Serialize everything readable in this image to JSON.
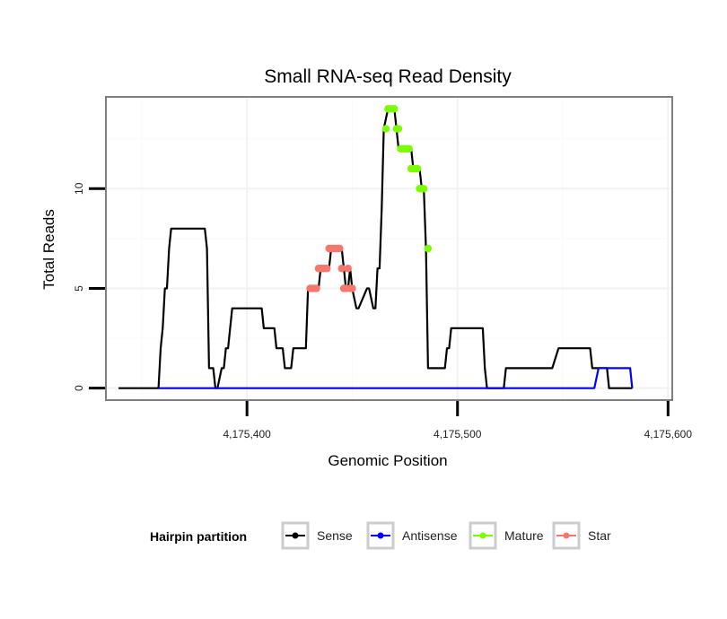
{
  "chart_data": {
    "type": "line",
    "title": "Small RNA-seq Read Density",
    "xlabel": "Genomic Position",
    "ylabel": "Total Reads",
    "xlim": [
      4175333,
      4175602
    ],
    "ylim": [
      -0.6,
      14.6
    ],
    "x_ticks": [
      4175400,
      4175500,
      4175600
    ],
    "x_tick_labels": [
      "4,175,400",
      "4,175,500",
      "4,175,600"
    ],
    "y_ticks": [
      0,
      5,
      10
    ],
    "y_tick_labels": [
      "0",
      "5",
      "10"
    ],
    "grid": true,
    "legend": {
      "title": "Hairpin partition",
      "position": "bottom",
      "entries": [
        {
          "name": "Sense",
          "color": "#000000"
        },
        {
          "name": "Antisense",
          "color": "#0000ff"
        },
        {
          "name": "Mature",
          "color": "#7cfc00"
        },
        {
          "name": "Star",
          "color": "#f8766d"
        }
      ]
    },
    "series": [
      {
        "name": "Sense",
        "color": "#000000",
        "style": "line",
        "x": [
          4175339,
          4175358,
          4175359,
          4175360,
          4175361,
          4175362,
          4175363,
          4175364,
          4175380,
          4175381,
          4175382,
          4175384,
          4175385,
          4175386,
          4175388,
          4175389,
          4175390,
          4175391,
          4175392,
          4175393,
          4175394,
          4175395,
          4175407,
          4175408,
          4175413,
          4175414,
          4175417,
          4175418,
          4175421,
          4175422,
          4175428,
          4175429,
          4175434,
          4175435,
          4175439,
          4175440,
          4175445,
          4175446,
          4175447,
          4175448,
          4175449,
          4175450,
          4175452,
          4175453,
          4175457,
          4175458,
          4175460,
          4175461,
          4175462,
          4175463,
          4175464,
          4175465,
          4175467,
          4175470,
          4175471,
          4175472,
          4175473,
          4175478,
          4175479,
          4175482,
          4175483,
          4175484,
          4175485,
          4175486,
          4175493,
          4175494,
          4175495,
          4175496,
          4175497,
          4175512,
          4175513,
          4175514,
          4175522,
          4175523,
          4175544,
          4175545,
          4175548,
          4175549,
          4175552,
          4175563,
          4175564,
          4175571,
          4175572,
          4175583
        ],
        "y": [
          0,
          0,
          2,
          3,
          5,
          5,
          7,
          8,
          8,
          7,
          1,
          1,
          0,
          0,
          1,
          1,
          2,
          2,
          3,
          4,
          4,
          4,
          4,
          3,
          3,
          2,
          2,
          1,
          1,
          2,
          2,
          5,
          5,
          6,
          6,
          7,
          7,
          6,
          5,
          5,
          6,
          5,
          4,
          4,
          5,
          5,
          4,
          4,
          6,
          6,
          9,
          13,
          14,
          14,
          13,
          12,
          12,
          12,
          11,
          11,
          10,
          10,
          7,
          1,
          1,
          1,
          2,
          2,
          3,
          3,
          1,
          0,
          0,
          1,
          1,
          1,
          2,
          2,
          2,
          2,
          1,
          1,
          0,
          0
        ]
      },
      {
        "name": "Antisense",
        "color": "#0000ff",
        "style": "line",
        "x": [
          4175358,
          4175565,
          4175567,
          4175582,
          4175583
        ],
        "y": [
          0,
          0,
          1,
          1,
          0
        ]
      },
      {
        "name": "Mature",
        "color": "#7cfc00",
        "style": "points",
        "x": [
          4175466,
          4175467,
          4175468,
          4175469,
          4175470,
          4175471,
          4175472,
          4175473,
          4175474,
          4175475,
          4175476,
          4175477,
          4175478,
          4175479,
          4175480,
          4175481,
          4175482,
          4175483,
          4175484,
          4175486
        ],
        "y": [
          13,
          14,
          14,
          14,
          14,
          13,
          13,
          12,
          12,
          12,
          12,
          12,
          11,
          11,
          11,
          11,
          10,
          10,
          10,
          7
        ]
      },
      {
        "name": "Star",
        "color": "#f8766d",
        "style": "points",
        "x": [
          4175430,
          4175431,
          4175432,
          4175433,
          4175434,
          4175435,
          4175436,
          4175437,
          4175438,
          4175439,
          4175440,
          4175441,
          4175442,
          4175443,
          4175444,
          4175445,
          4175446,
          4175447,
          4175448,
          4175449,
          4175450
        ],
        "y": [
          5,
          5,
          5,
          5,
          6,
          6,
          6,
          6,
          6,
          7,
          7,
          7,
          7,
          7,
          7,
          6,
          5,
          5,
          6,
          5,
          5
        ]
      }
    ]
  }
}
